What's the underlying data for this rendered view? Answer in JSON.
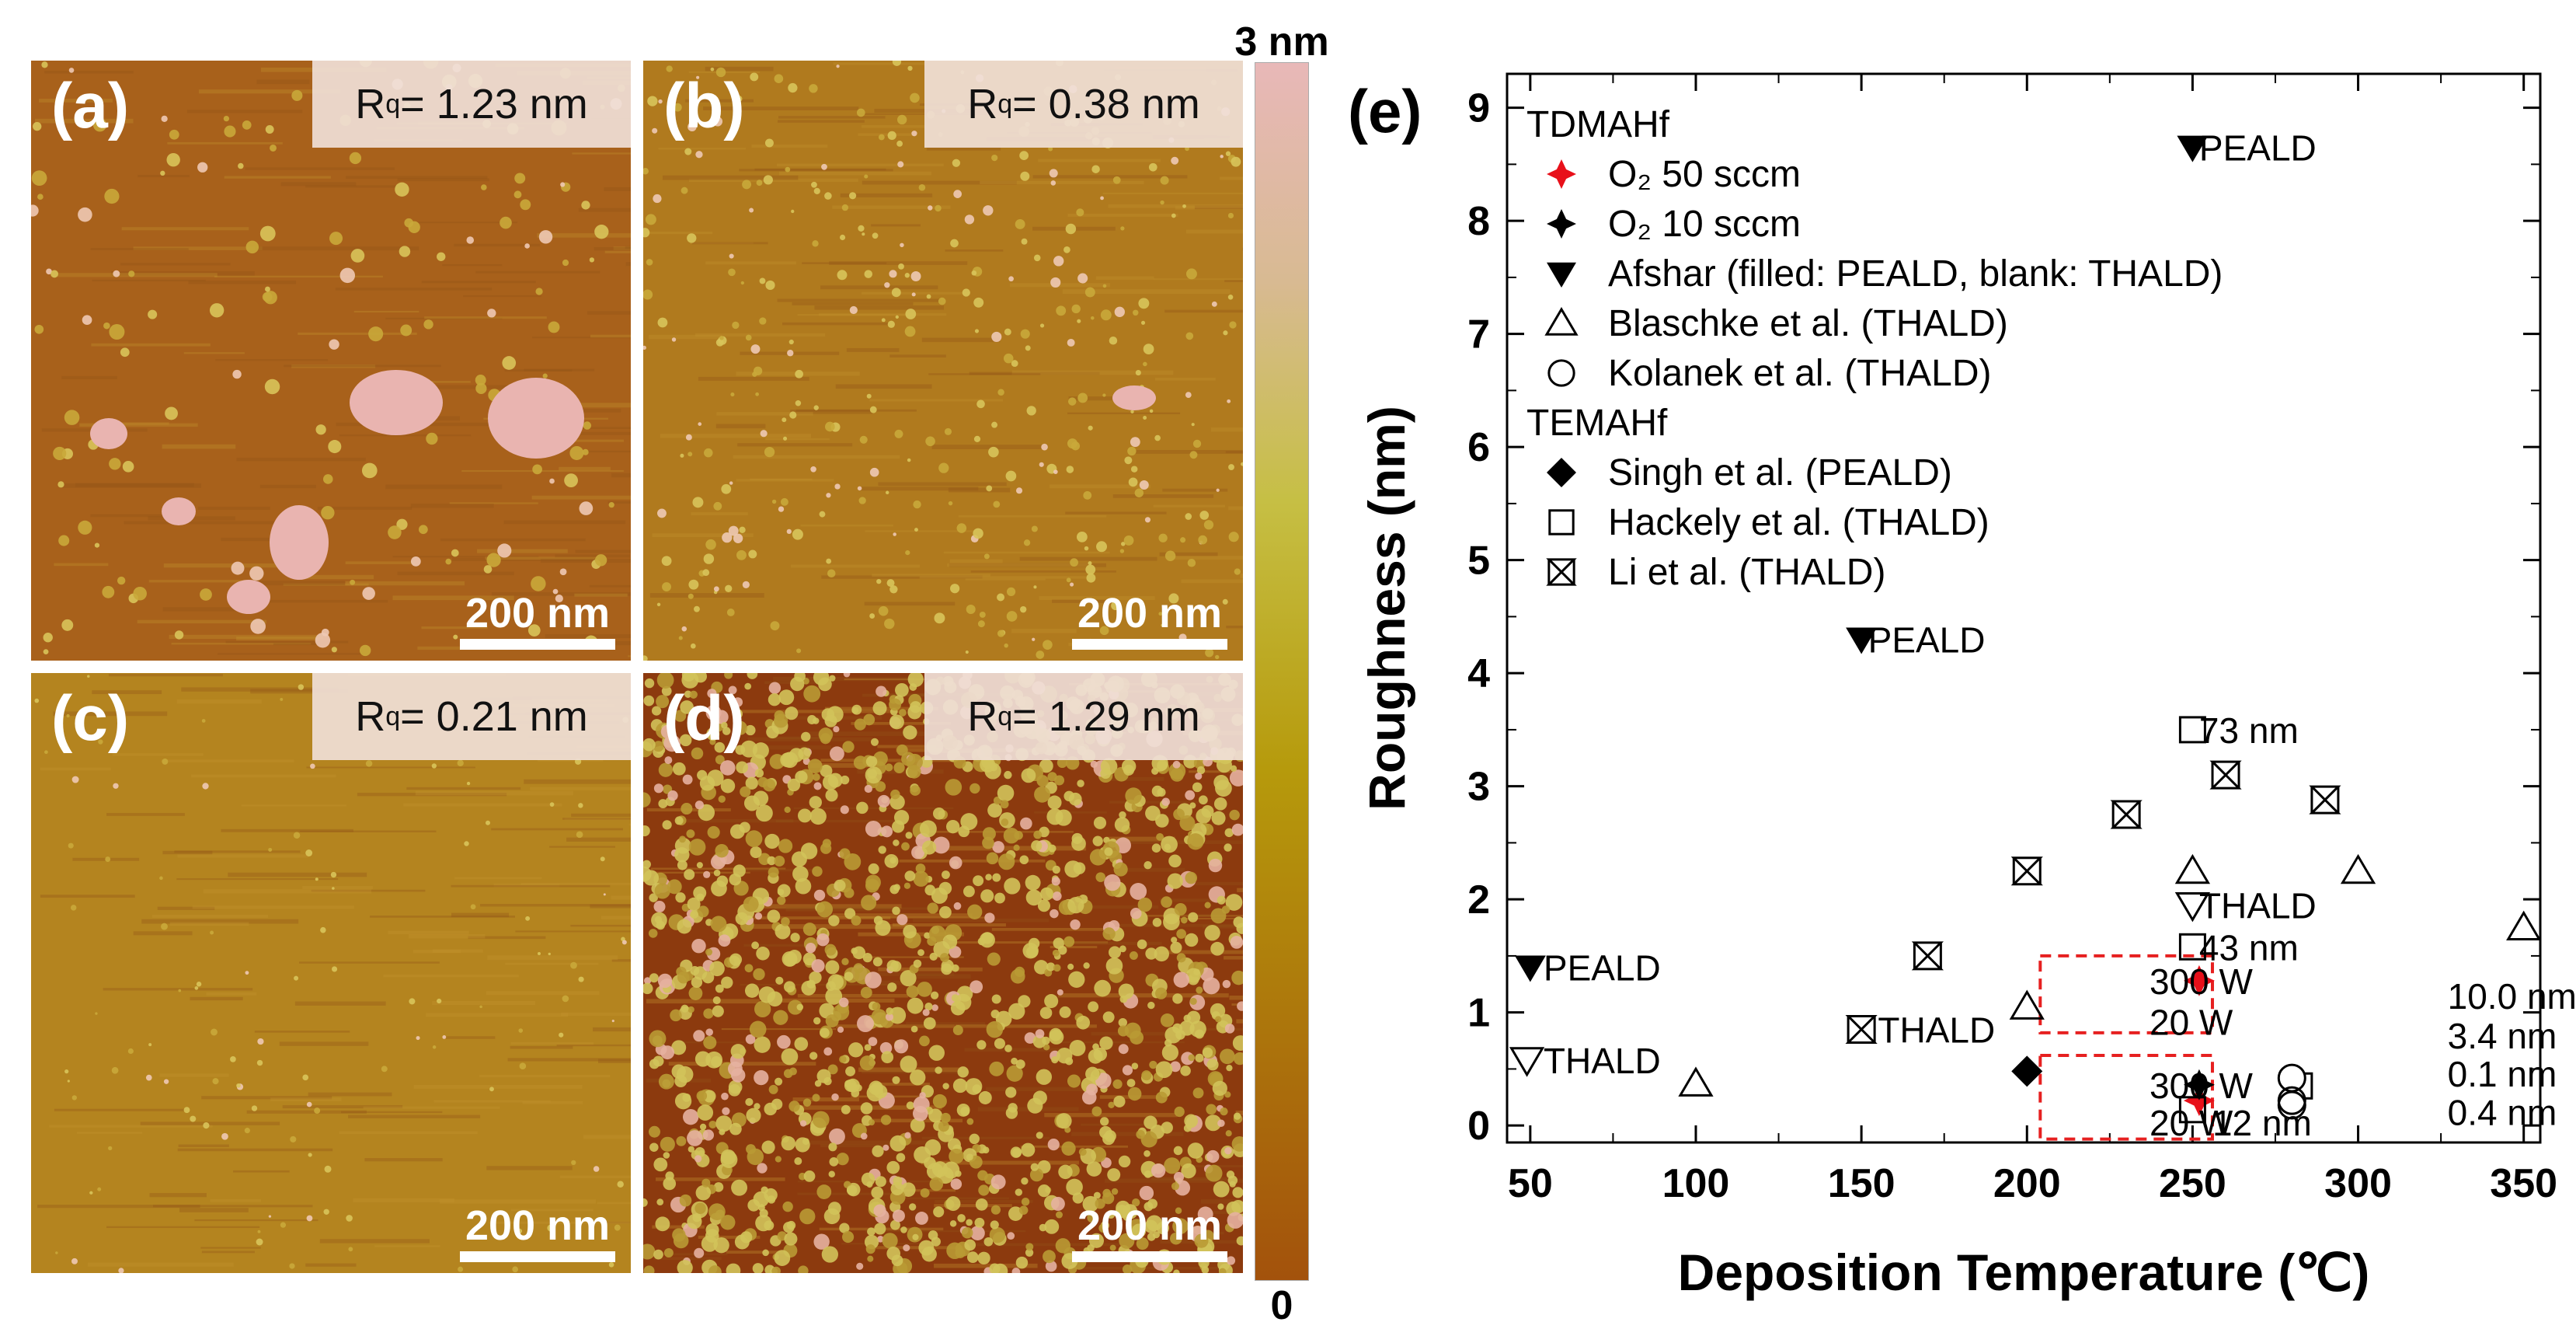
{
  "afm_panels": [
    {
      "letter": "(a)",
      "rq_label": "R",
      "rq_sub": "q",
      "rq_value": " = 1.23 nm",
      "scalebar": "200 nm"
    },
    {
      "letter": "(b)",
      "rq_label": "R",
      "rq_sub": "q",
      "rq_value": " = 0.38 nm",
      "scalebar": "200 nm"
    },
    {
      "letter": "(c)",
      "rq_label": "R",
      "rq_sub": "q",
      "rq_value": " = 0.21 nm",
      "scalebar": "200 nm"
    },
    {
      "letter": "(d)",
      "rq_label": "R",
      "rq_sub": "q",
      "rq_value": " = 1.29 nm",
      "scalebar": "200 nm"
    }
  ],
  "colorbar": {
    "max_label": "3 nm",
    "min_label": "0"
  },
  "colors": {
    "red": "#e8101a",
    "black": "#000000",
    "dashed_box": "#e62020"
  },
  "chart_data": {
    "type": "scatter",
    "panel_label": "(e)",
    "xlabel": "Deposition Temperature (℃)",
    "ylabel": "Roughness (nm)",
    "xlim": [
      43,
      355
    ],
    "ylim": [
      -0.15,
      9.3
    ],
    "xticks": [
      50,
      100,
      150,
      200,
      250,
      300,
      350
    ],
    "yticks": [
      0,
      1,
      2,
      3,
      4,
      5,
      6,
      7,
      8,
      9
    ],
    "legend": {
      "groups": [
        {
          "title": "TDMAHf",
          "entries": [
            {
              "label": "O₂ 50 sccm",
              "marker": "star4",
              "color": "#e8101a"
            },
            {
              "label": "O₂ 10 sccm",
              "marker": "star4",
              "color": "#000000"
            },
            {
              "label": "Afshar (filled: PEALD, blank: THALD)",
              "marker": "tri_down_filled",
              "color": "#000000"
            },
            {
              "label": "Blaschke et al. (THALD)",
              "marker": "tri_up_open",
              "color": "#000000"
            },
            {
              "label": "Kolanek et al. (THALD)",
              "marker": "circle_open",
              "color": "#000000"
            }
          ]
        },
        {
          "title": "TEMAHf",
          "entries": [
            {
              "label": "Singh et al. (PEALD)",
              "marker": "diamond_filled",
              "color": "#000000"
            },
            {
              "label": "Hackely et al. (THALD)",
              "marker": "square_open",
              "color": "#000000"
            },
            {
              "label": "Li et al. (THALD)",
              "marker": "hourglass",
              "color": "#000000"
            }
          ]
        }
      ]
    },
    "series": [
      {
        "name": "O₂ 50 sccm",
        "marker": "star4",
        "color": "#e8101a",
        "points": [
          [
            252,
            1.28
          ],
          [
            252,
            0.22
          ]
        ]
      },
      {
        "name": "O₂ 10 sccm",
        "marker": "star4",
        "color": "#000000",
        "points": [
          [
            252,
            0.36
          ]
        ]
      },
      {
        "name": "Afshar PEALD",
        "marker": "tri_down_filled",
        "color": "#000000",
        "points": [
          [
            250,
            8.65
          ],
          [
            150,
            4.3
          ],
          [
            50,
            1.4
          ]
        ]
      },
      {
        "name": "Afshar THALD",
        "marker": "tri_down_open",
        "color": "#000000",
        "points": [
          [
            250,
            1.95
          ],
          [
            49,
            0.58
          ]
        ]
      },
      {
        "name": "Blaschke et al. (THALD)",
        "marker": "tri_up_open",
        "color": "#000000",
        "points": [
          [
            250,
            2.25
          ],
          [
            300,
            2.25
          ],
          [
            350,
            1.75
          ],
          [
            200,
            1.05
          ],
          [
            100,
            0.37
          ]
        ]
      },
      {
        "name": "Kolanek et al. (THALD)",
        "marker": "circle_open",
        "color": "#000000",
        "points": [
          [
            280,
            0.42
          ],
          [
            280,
            0.22
          ],
          [
            280,
            0.18
          ]
        ]
      },
      {
        "name": "Singh et al. (PEALD)",
        "marker": "diamond_filled",
        "color": "#000000",
        "points": [
          [
            200,
            0.48
          ]
        ]
      },
      {
        "name": "Hackely et al. (THALD)",
        "marker": "square_open",
        "color": "#000000",
        "points": [
          [
            250,
            3.5
          ],
          [
            250,
            1.58
          ],
          [
            250,
            0.14
          ]
        ]
      },
      {
        "name": "Li et al. (THALD)",
        "marker": "hourglass",
        "color": "#000000",
        "points": [
          [
            150,
            0.85
          ],
          [
            170,
            1.5
          ],
          [
            200,
            2.25
          ],
          [
            230,
            2.75
          ],
          [
            260,
            3.1
          ],
          [
            290,
            2.88
          ]
        ]
      }
    ],
    "annotations": [
      {
        "text": "PEALD",
        "x": 252,
        "y": 8.65
      },
      {
        "text": "PEALD",
        "x": 152,
        "y": 4.3
      },
      {
        "text": "PEALD",
        "x": 54,
        "y": 1.4
      },
      {
        "text": "73 nm",
        "x": 252,
        "y": 3.5
      },
      {
        "text": "THALD",
        "x": 252,
        "y": 1.95
      },
      {
        "text": "43 nm",
        "x": 252,
        "y": 1.58
      },
      {
        "text": "THALD",
        "x": 155,
        "y": 0.85
      },
      {
        "text": "THALD",
        "x": 54,
        "y": 0.58
      },
      {
        "text": "12 nm",
        "x": 256,
        "y": 0.03
      },
      {
        "text": "300 W",
        "x": 237,
        "y": 1.28
      },
      {
        "text": "20 W",
        "x": 237,
        "y": 0.92
      },
      {
        "text": "300 W",
        "x": 237,
        "y": 0.36
      },
      {
        "text": "20 W",
        "x": 237,
        "y": 0.03
      },
      {
        "text": "10.0 nm",
        "x": 327,
        "y": 1.15
      },
      {
        "text": "3.4 nm",
        "x": 327,
        "y": 0.8
      },
      {
        "text": "0.1 nm",
        "x": 327,
        "y": 0.46
      },
      {
        "text": "0.4 nm",
        "x": 327,
        "y": 0.12
      }
    ],
    "highlight_boxes": [
      {
        "x": [
          204,
          256
        ],
        "y": [
          0.82,
          1.5
        ]
      },
      {
        "x": [
          204,
          256
        ],
        "y": [
          -0.12,
          0.62
        ]
      }
    ]
  }
}
